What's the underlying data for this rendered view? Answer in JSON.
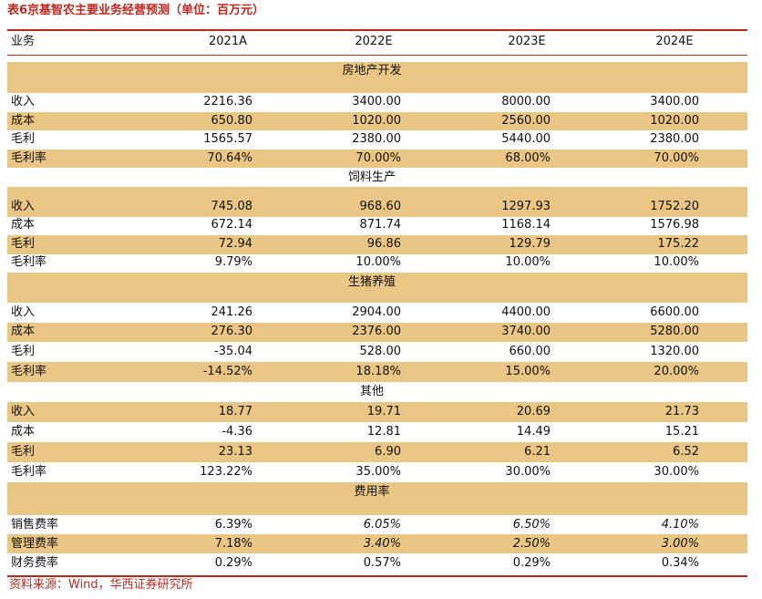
{
  "title": "表6京基智农主要业务经营预测（单位：百万元）",
  "header": [
    "业务",
    "2021A",
    "2022E",
    "2023E",
    "2024E"
  ],
  "sections": [
    {
      "name": "房地产开发",
      "rows": [
        [
          "收入",
          "2216.36",
          "3400.00",
          "8000.00",
          "3400.00"
        ],
        [
          "成本",
          "650.80",
          "1020.00",
          "2560.00",
          "1020.00"
        ],
        [
          "毛利",
          "1565.57",
          "2380.00",
          "5440.00",
          "2380.00"
        ],
        [
          "毛利率",
          "70.64%",
          "70.00%",
          "68.00%",
          "70.00%"
        ]
      ]
    },
    {
      "name": "饲料生产",
      "rows": [
        [
          "收入",
          "745.08",
          "968.60",
          "1297.93",
          "1752.20"
        ],
        [
          "成本",
          "672.14",
          "871.74",
          "1168.14",
          "1576.98"
        ],
        [
          "毛利",
          "72.94",
          "96.86",
          "129.79",
          "175.22"
        ],
        [
          "毛利率",
          "9.79%",
          "10.00%",
          "10.00%",
          "10.00%"
        ]
      ]
    },
    {
      "name": "生猪养殖",
      "rows": [
        [
          "收入",
          "241.26",
          "2904.00",
          "4400.00",
          "6600.00"
        ],
        [
          "成本",
          "276.30",
          "2376.00",
          "3740.00",
          "5280.00"
        ],
        [
          "毛利",
          "-35.04",
          "528.00",
          "660.00",
          "1320.00"
        ],
        [
          "毛利率",
          "-14.52%",
          "18.18%",
          "15.00%",
          "20.00%"
        ]
      ]
    },
    {
      "name": "其他",
      "rows": [
        [
          "收入",
          "18.77",
          "19.71",
          "20.69",
          "21.73"
        ],
        [
          "成本",
          "-4.36",
          "12.81",
          "14.49",
          "15.21"
        ],
        [
          "毛利",
          "23.13",
          "6.90",
          "6.21",
          "6.52"
        ],
        [
          "毛利率",
          "123.22%",
          "35.00%",
          "30.00%",
          "30.00%"
        ]
      ]
    },
    {
      "name": "费用率",
      "rows": [
        [
          "销售费率",
          "6.39%",
          "6.05%",
          "6.50%",
          "4.10%"
        ],
        [
          "管理费率",
          "7.18%",
          "3.40%",
          "2.50%",
          "3.00%"
        ],
        [
          "财务费率",
          "0.29%",
          "0.57%",
          "0.29%",
          "0.34%"
        ]
      ]
    }
  ],
  "source": "资料来源：Wind，华西证券研究所"
}
